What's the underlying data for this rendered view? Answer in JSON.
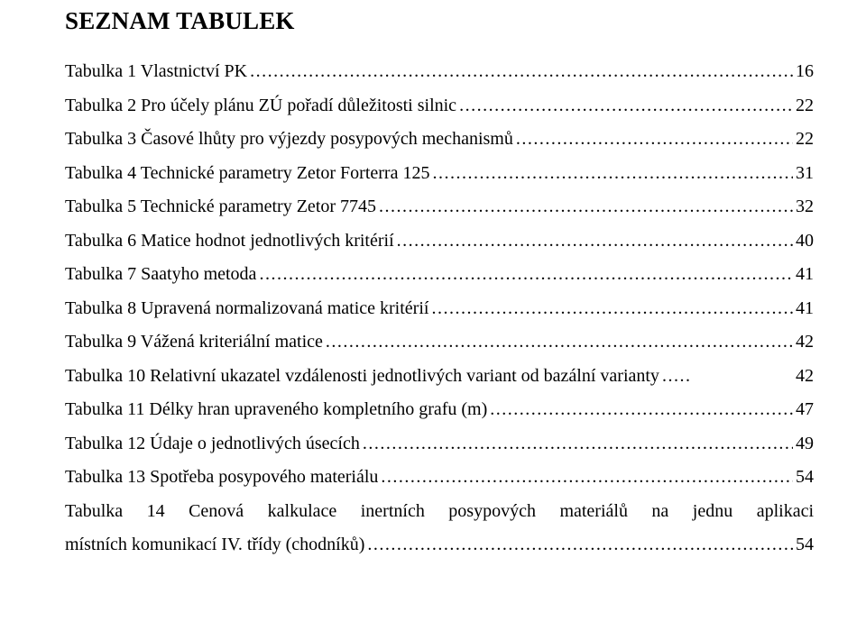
{
  "heading": "SEZNAM TABULEK",
  "text_color": "#000000",
  "background_color": "#ffffff",
  "font_family": "Times New Roman",
  "heading_fontsize": 27,
  "body_fontsize": 20,
  "entries": [
    {
      "label": "Tabulka 1 Vlastnictví PK",
      "page": "16"
    },
    {
      "label": "Tabulka 2 Pro účely plánu ZÚ pořadí důležitosti silnic",
      "page": "22"
    },
    {
      "label": "Tabulka 3 Časové lhůty pro výjezdy posypových mechanismů",
      "page": "22"
    },
    {
      "label": "Tabulka 4 Technické parametry Zetor Forterra 125",
      "page": "31"
    },
    {
      "label": "Tabulka 5 Technické parametry Zetor 7745",
      "page": "32"
    },
    {
      "label": "Tabulka 6 Matice hodnot jednotlivých kritérií",
      "page": "40"
    },
    {
      "label": "Tabulka 7 Saatyho metoda",
      "page": "41"
    },
    {
      "label": "Tabulka 8 Upravená normalizovaná matice kritérií",
      "page": "41"
    },
    {
      "label": "Tabulka 9 Vážená kriteriální matice",
      "page": "42"
    },
    {
      "label": "Tabulka 10 Relativní ukazatel vzdálenosti jednotlivých variant od bazální varianty",
      "page": "42",
      "short_leader": true
    },
    {
      "label": "Tabulka 11 Délky hran upraveného kompletního grafu (m)",
      "page": "47"
    },
    {
      "label": "Tabulka 12 Údaje o jednotlivých úsecích",
      "page": "49"
    },
    {
      "label": "Tabulka 13 Spotřeba posypového materiálu",
      "page": "54"
    }
  ],
  "wrapped_entry": {
    "line1": "Tabulka 14 Cenová kalkulace inertních posypových materiálů na jednu aplikaci",
    "line2": "místních komunikací IV. třídy (chodníků)",
    "page": "54"
  }
}
